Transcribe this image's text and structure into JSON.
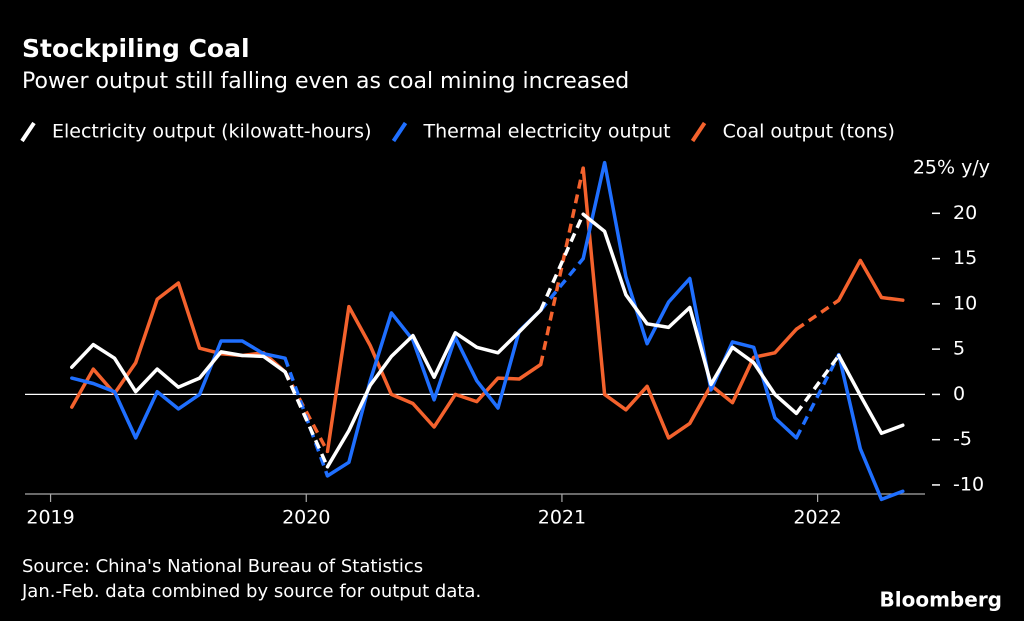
{
  "chart_data": {
    "type": "line",
    "title": "Stockpiling Coal",
    "subtitle": "Power output still falling even as coal mining increased",
    "source": "Source: China's National Bureau of Statistics",
    "note": "Jan.-Feb. data combined by source for output data.",
    "logo": "Bloomberg",
    "x": [
      2019.083,
      2019.167,
      2019.25,
      2019.333,
      2019.417,
      2019.5,
      2019.583,
      2019.667,
      2019.75,
      2019.833,
      2019.917,
      2020.0,
      2020.083,
      2020.167,
      2020.25,
      2020.333,
      2020.417,
      2020.5,
      2020.583,
      2020.667,
      2020.75,
      2020.833,
      2020.917,
      2021.0,
      2021.083,
      2021.167,
      2021.25,
      2021.333,
      2021.417,
      2021.5,
      2021.583,
      2021.667,
      2021.75,
      2021.833,
      2021.917,
      2022.0,
      2022.083,
      2022.167,
      2022.25,
      2022.333
    ],
    "series": [
      {
        "name": "Electricity output (kilowatt-hours)",
        "color": "#ffffff",
        "values": [
          3,
          5.5,
          4,
          0.3,
          2.8,
          0.8,
          1.8,
          4.7,
          4.3,
          4.2,
          2.5,
          null,
          -8,
          -4,
          1,
          4.2,
          6.5,
          1.9,
          6.8,
          5.2,
          4.6,
          6.9,
          9.3,
          null,
          19.9,
          18,
          11,
          7.8,
          7.4,
          9.6,
          1.1,
          5.2,
          3.5,
          0,
          -2.1,
          null,
          4.3,
          -0.1,
          -4.3,
          -3.4
        ]
      },
      {
        "name": "Thermal electricity output",
        "color": "#1f6fff",
        "values": [
          1.8,
          1.2,
          0.3,
          -4.8,
          0.3,
          -1.6,
          0,
          5.9,
          5.9,
          4.5,
          4,
          null,
          -9,
          -7.5,
          1.5,
          9,
          6,
          -0.6,
          6.3,
          1.5,
          -1.5,
          7,
          9.3,
          null,
          15,
          25.6,
          13,
          5.6,
          10.2,
          12.8,
          0.5,
          5.8,
          5.2,
          -2.6,
          -4.8,
          null,
          4.4,
          -6,
          -11.6,
          -10.7
        ]
      },
      {
        "name": "Coal output (tons)",
        "color": "#f4622d",
        "values": [
          -1.4,
          2.8,
          0.1,
          3.5,
          10.5,
          12.3,
          5.1,
          4.5,
          4.3,
          4.6,
          2.5,
          null,
          -6.3,
          9.7,
          5.4,
          0,
          -1,
          -3.6,
          0,
          -0.8,
          1.8,
          1.7,
          3.3,
          null,
          25,
          0,
          -1.7,
          0.9,
          -4.8,
          -3.2,
          1,
          -0.9,
          4.1,
          4.6,
          7.2,
          null,
          10.4,
          14.8,
          10.7,
          10.4
        ]
      }
    ],
    "xlim": [
      2018.9,
      2022.42
    ],
    "xticks": [
      2019,
      2020,
      2021,
      2022
    ],
    "ylim": [
      -11,
      26
    ],
    "yticks": [
      {
        "value": 25,
        "label": "25% y/y"
      },
      20,
      15,
      10,
      5,
      0,
      -5,
      -10
    ],
    "zero_line": true
  }
}
